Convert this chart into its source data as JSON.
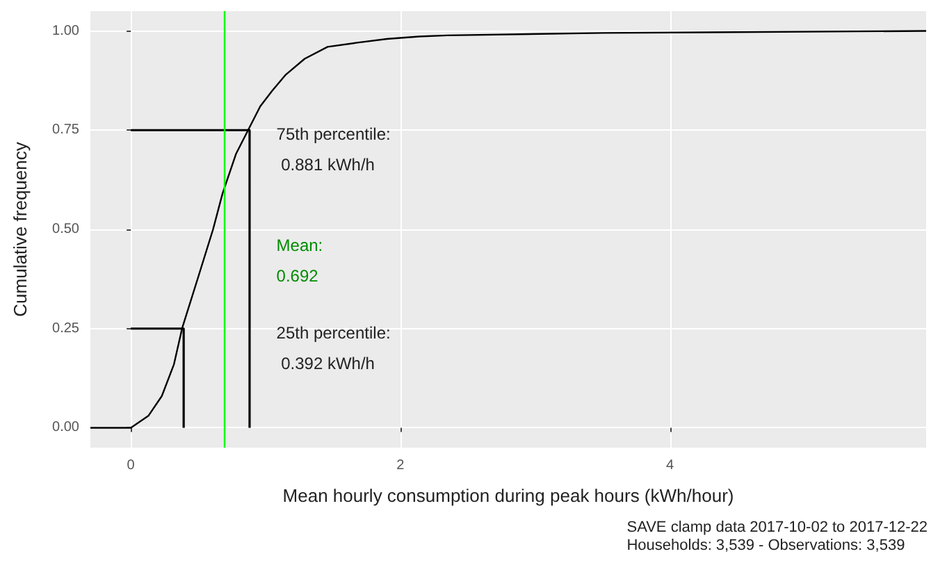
{
  "chart_data": {
    "type": "line",
    "xlabel": "Mean hourly consumption during peak hours (kWh/hour)",
    "ylabel": "Cumulative frequency",
    "xlim": [
      -0.3,
      5.9
    ],
    "xticks": [
      0,
      2,
      4
    ],
    "ylim": [
      -0.05,
      1.05
    ],
    "yticks": [
      {
        "value": 0,
        "label": "0.00"
      },
      {
        "value": 0.25,
        "label": "0.25"
      },
      {
        "value": 0.5,
        "label": "0.50"
      },
      {
        "value": 0.75,
        "label": "0.75"
      },
      {
        "value": 1,
        "label": "1.00"
      }
    ],
    "grid": true,
    "marker": "none",
    "line_style": "solid",
    "series": [
      {
        "color": "#000000",
        "x": [
          -0.3,
          0,
          0.13,
          0.23,
          0.32,
          0.38,
          0.5,
          0.61,
          0.68,
          0.78,
          0.87,
          0.96,
          1.05,
          1.15,
          1.29,
          1.46,
          1.67,
          1.9,
          2.14,
          2.35,
          3.51,
          5.9
        ],
        "values": [
          0,
          0,
          0.03,
          0.08,
          0.16,
          0.25,
          0.38,
          0.5,
          0.59,
          0.69,
          0.75,
          0.81,
          0.85,
          0.89,
          0.93,
          0.96,
          0.97,
          0.98,
          0.986,
          0.989,
          0.995,
          1
        ]
      },
      {
        "color": "#000000",
        "x": [
          0,
          0.881,
          0.881
        ],
        "values": [
          0.75,
          0.75,
          0
        ]
      },
      {
        "color": "#000000",
        "x": [
          0,
          0.392,
          0.392
        ],
        "values": [
          0.25,
          0.25,
          0
        ]
      }
    ],
    "ref_lines": [
      {
        "axis": "x",
        "value": 0.692,
        "color": "#00ff00"
      }
    ],
    "annotations": [
      "75th percentile:\n 0.881 kWh/h",
      "Mean:\n0.692",
      "25th percentile:\n 0.392 kWh/h",
      "SAVE clamp data 2017-10-02 to 2017-12-22\nHouseholds: 3,539 - Observations: 3,539"
    ]
  }
}
